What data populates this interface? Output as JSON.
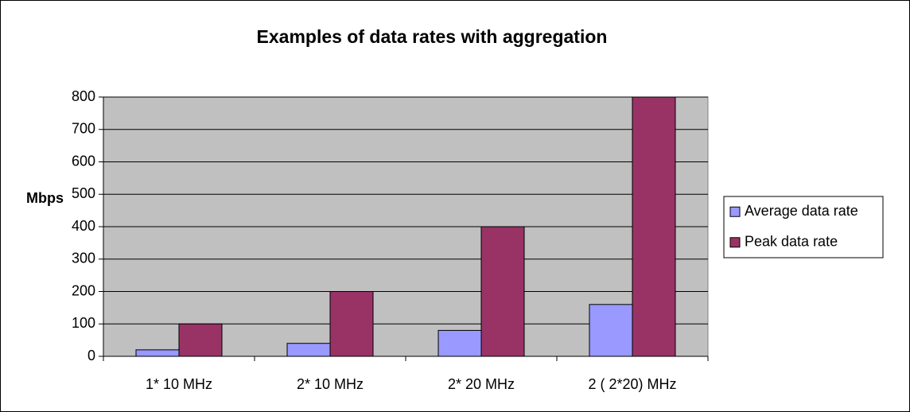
{
  "chart_data": {
    "type": "bar",
    "title": "Examples of data rates with aggregation",
    "y_label": "Mbps",
    "categories": [
      "1* 10 MHz",
      "2* 10 MHz",
      "2* 20 MHz",
      "2 ( 2*20) MHz"
    ],
    "series": [
      {
        "name": "Average data rate",
        "color": "#9999ff",
        "values": [
          20,
          40,
          80,
          160
        ]
      },
      {
        "name": "Peak data rate",
        "color": "#993366",
        "values": [
          100,
          200,
          400,
          800
        ]
      }
    ],
    "ylim": [
      0,
      800
    ],
    "yticks": [
      0,
      100,
      200,
      300,
      400,
      500,
      600,
      700,
      800
    ],
    "grid": true,
    "legend": "right"
  }
}
